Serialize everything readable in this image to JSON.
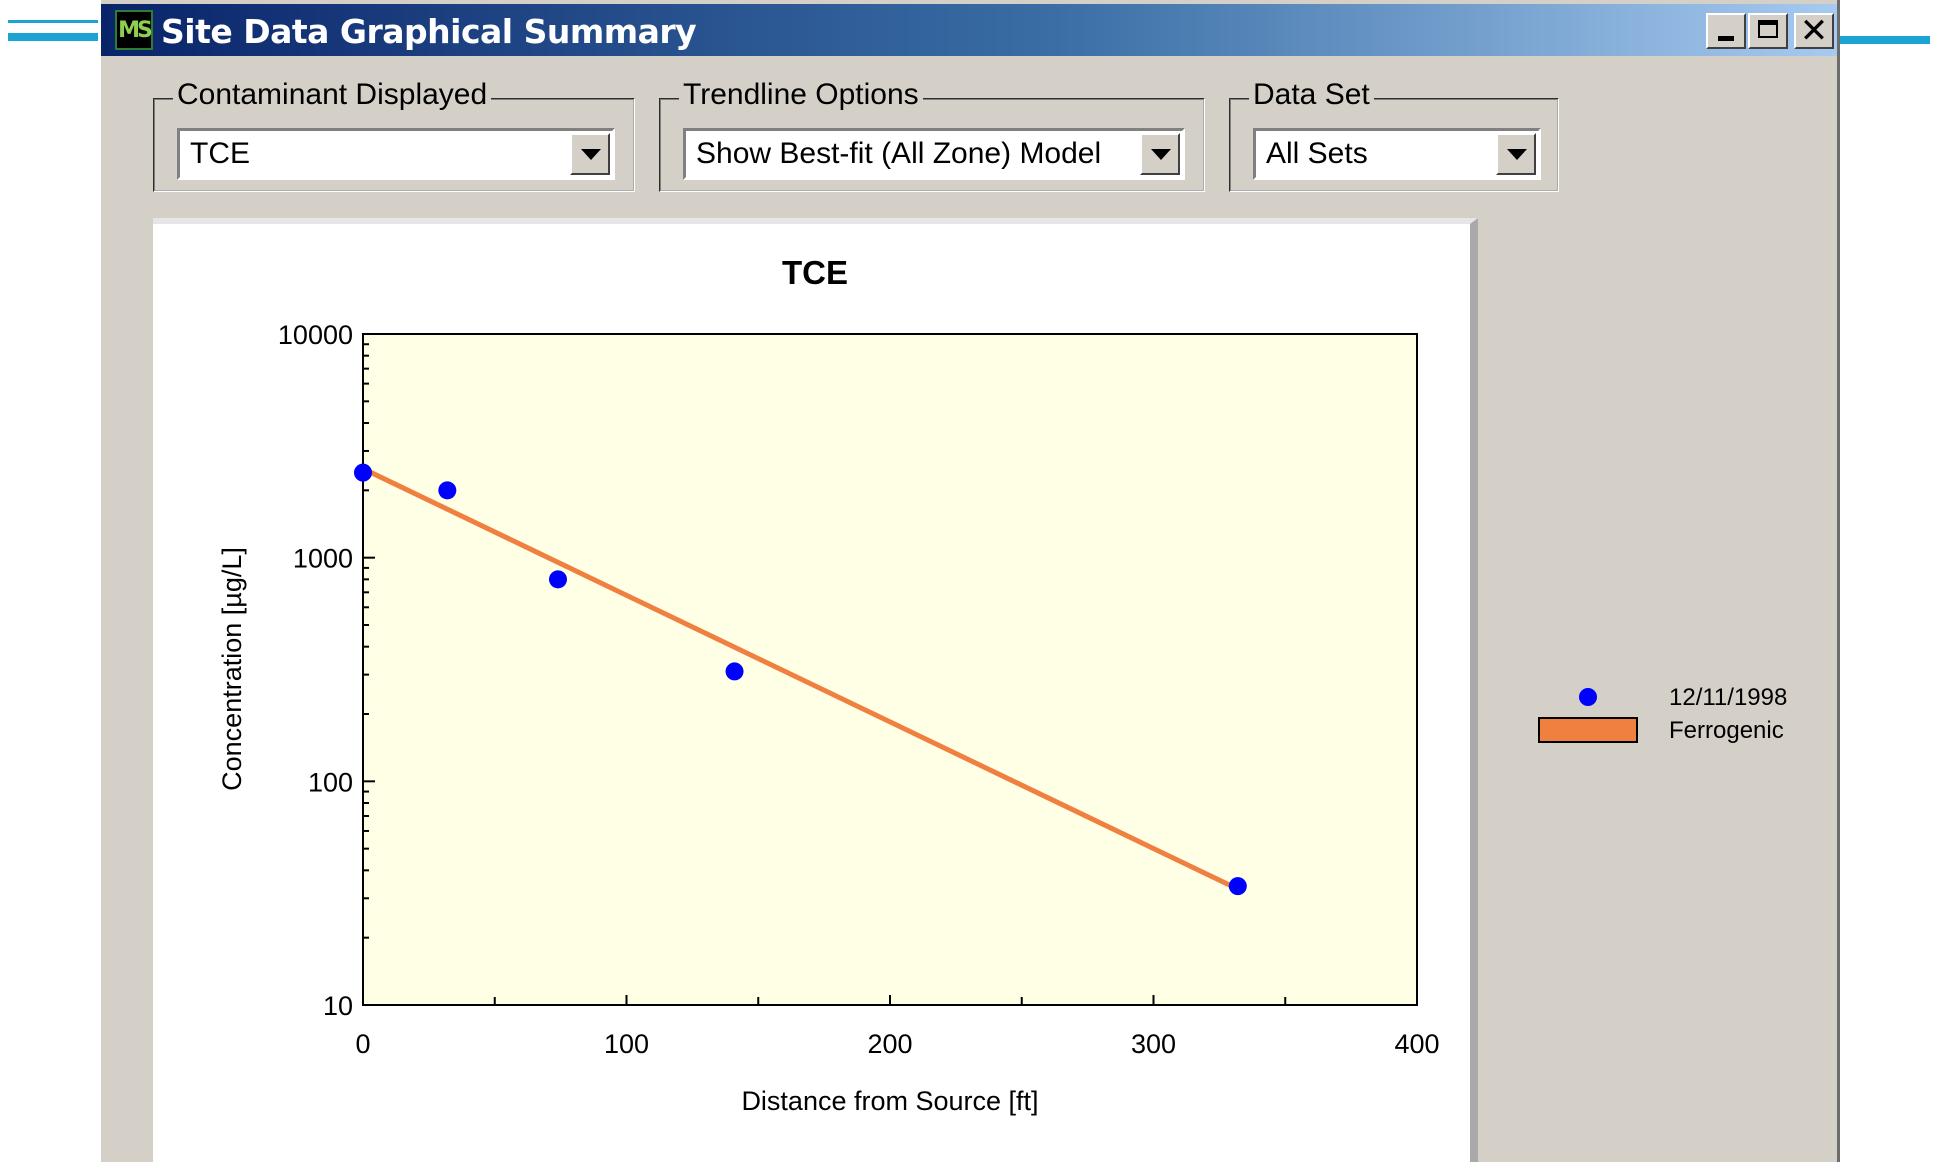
{
  "window": {
    "title": "Site Data Graphical Summary",
    "icon": "app-chart-icon",
    "icon_text": "MS",
    "controls": {
      "minimize": "minimize-icon",
      "maximize": "maximize-icon",
      "close_label": "✕"
    }
  },
  "controls": {
    "contaminant": {
      "label": "Contaminant Displayed",
      "value": "TCE"
    },
    "trendline": {
      "label": "Trendline Options",
      "value": "Show Best-fit (All Zone) Model"
    },
    "dataset": {
      "label": "Data Set",
      "value": "All Sets"
    }
  },
  "colors": {
    "plot_background": "#ffffe6",
    "points": "#0000ff",
    "trendline": "#f08040",
    "title_gradient_start": "#0a246a",
    "title_gradient_end": "#a6caf0"
  },
  "chart_data": {
    "type": "scatter",
    "title": "TCE",
    "xlabel": "Distance from Source [ft]",
    "ylabel": "Concentration  [µg/L]",
    "xlim": [
      0,
      400
    ],
    "ylim": [
      10,
      10000
    ],
    "yscale": "log",
    "x_ticks": [
      "0",
      "100",
      "200",
      "300",
      "400"
    ],
    "y_ticks": [
      "10",
      "100",
      "1000",
      "10000"
    ],
    "grid": false,
    "legend_position": "right",
    "series": [
      {
        "name": "12/11/1998",
        "kind": "points",
        "x": [
          0,
          32,
          74,
          141,
          332
        ],
        "y": [
          2400,
          2000,
          800,
          310,
          34
        ]
      },
      {
        "name": "Ferrogenic",
        "kind": "line",
        "x": [
          0,
          332
        ],
        "y": [
          2500,
          33
        ]
      }
    ]
  }
}
